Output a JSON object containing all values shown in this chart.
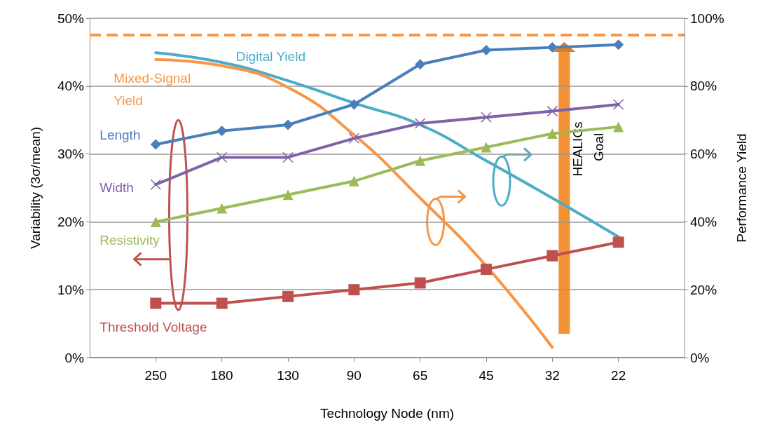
{
  "chart_data": {
    "type": "line",
    "xlabel": "Technology Node (nm)",
    "ylabel": "Variability (3σ/mean)",
    "y2label": "Performance Yield",
    "categories": [
      null,
      "250",
      "180",
      "130",
      "90",
      "65",
      "45",
      "32",
      "22",
      null
    ],
    "series": [
      {
        "name": "Length",
        "color": "#4a7ebb",
        "marker": "diamond",
        "values": [
          null,
          31.4,
          33.4,
          34.3,
          37.3,
          43.2,
          45.3,
          45.7,
          46.1,
          null
        ]
      },
      {
        "name": "Width",
        "color": "#7f62a8",
        "marker": "cross",
        "values": [
          null,
          25.5,
          29.5,
          29.5,
          32.3,
          34.5,
          35.4,
          36.3,
          37.3,
          null
        ]
      },
      {
        "name": "Resistivity",
        "color": "#9bbb59",
        "marker": "triangle",
        "values": [
          null,
          20,
          22,
          24,
          26,
          29,
          31,
          33,
          34,
          null
        ]
      },
      {
        "name": "Threshold Voltage",
        "color": "#c0504d",
        "marker": "square",
        "values": [
          null,
          8,
          8,
          9,
          10,
          11,
          13,
          15,
          17,
          null
        ]
      },
      {
        "name": "Digital Yield",
        "color": "#4bacc6",
        "marker": "none",
        "axis": "y2",
        "values": [
          null,
          89.8,
          87,
          81.6,
          75,
          68.6,
          58,
          47,
          35.6,
          null
        ]
      },
      {
        "name": "Mixed-Signal Yield",
        "color": "#f79646",
        "marker": "none",
        "axis": "y2",
        "values": [
          null,
          87.8,
          86,
          79.6,
          65.6,
          47,
          27,
          3,
          null,
          null
        ]
      }
    ],
    "ylim": [
      0,
      50
    ],
    "yticks": [
      {
        "value": 0,
        "label": "0%"
      },
      {
        "value": 10,
        "label": "10%"
      },
      {
        "value": 20,
        "label": "20%"
      },
      {
        "value": 30,
        "label": "30%"
      },
      {
        "value": 40,
        "label": "40%"
      },
      {
        "value": 50,
        "label": "50%"
      }
    ],
    "y2lim": [
      0,
      100
    ],
    "y2ticks": [
      {
        "value": 0,
        "label": "0%"
      },
      {
        "value": 20,
        "label": "20%"
      },
      {
        "value": 40,
        "label": "40%"
      },
      {
        "value": 60,
        "label": "60%"
      },
      {
        "value": 80,
        "label": "80%"
      },
      {
        "value": 100,
        "label": "100%"
      }
    ],
    "ref_lines": [
      {
        "axis": "y2",
        "value": 95,
        "color": "#f79646",
        "line_style": "dashed"
      }
    ],
    "annotations": [
      "HEALICs Goal"
    ],
    "grid": "y",
    "legend": false
  }
}
